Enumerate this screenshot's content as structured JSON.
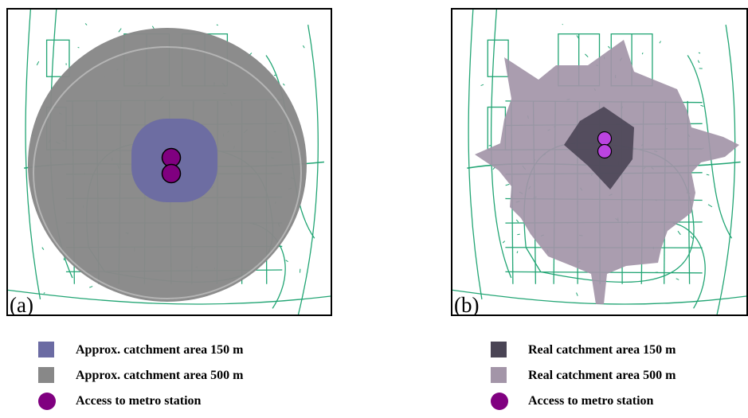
{
  "panels": [
    {
      "label": "(a)",
      "legend": [
        {
          "text": "Approx. catchment area 150 m",
          "symbol": "square",
          "color": "#6b6ba3"
        },
        {
          "text": "Approx. catchment area 500 m",
          "symbol": "square",
          "color": "#888888"
        },
        {
          "text": "Access to metro station",
          "symbol": "circle",
          "color": "#800080"
        }
      ]
    },
    {
      "label": "(b)",
      "legend": [
        {
          "text": "Real catchment area 150 m",
          "symbol": "square",
          "color": "#4a4555"
        },
        {
          "text": "Real catchment area 500 m",
          "symbol": "square",
          "color": "#a395a8"
        },
        {
          "text": "Access to metro station",
          "symbol": "circle",
          "color": "#800080"
        }
      ]
    }
  ],
  "colors": {
    "street": "#22a574",
    "approx_500": "#888888",
    "approx_150": "#6b6ba3",
    "real_500": "#a395a8",
    "real_150": "#4a4555",
    "station_a": "#800080",
    "station_b": "#bb44e0"
  }
}
